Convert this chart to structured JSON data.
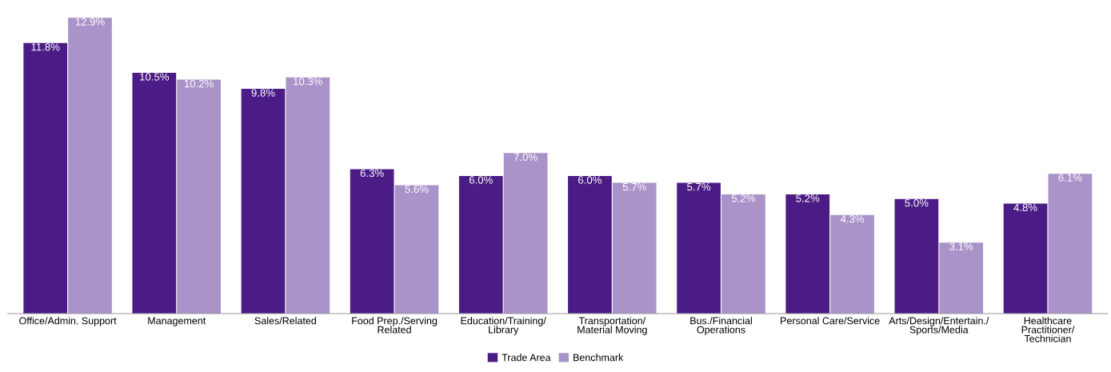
{
  "chart_data": {
    "type": "bar",
    "categories": [
      "Office/Admin. Support",
      "Management",
      "Sales/Related",
      "Food Prep./Serving\nRelated",
      "Education/Training/\nLibrary",
      "Transportation/\nMaterial Moving",
      "Bus./Financial\nOperations",
      "Personal Care/Service",
      "Arts/Design/Entertain./\nSports/Media",
      "Healthcare\nPractitioner/\nTechnician"
    ],
    "series": [
      {
        "name": "Trade Area",
        "color": "#4b1c86",
        "values": [
          11.8,
          10.5,
          9.8,
          6.3,
          6.0,
          6.0,
          5.7,
          5.2,
          5.0,
          4.8
        ],
        "value_labels": [
          "11.8%",
          "10.5%",
          "9.8%",
          "6.3%",
          "6.0%",
          "6.0%",
          "5.7%",
          "5.2%",
          "5.0%",
          "4.8%"
        ]
      },
      {
        "name": "Benchmark",
        "color": "#a993c8",
        "values": [
          12.9,
          10.2,
          10.3,
          5.6,
          7.0,
          5.7,
          5.2,
          4.3,
          3.1,
          6.1
        ],
        "value_labels": [
          "12.9%",
          "10.2%",
          "10.3%",
          "5.6%",
          "7.0%",
          "5.7%",
          "5.2%",
          "4.3%",
          "3.1%",
          "6.1%"
        ]
      }
    ],
    "legend": "bottom"
  }
}
